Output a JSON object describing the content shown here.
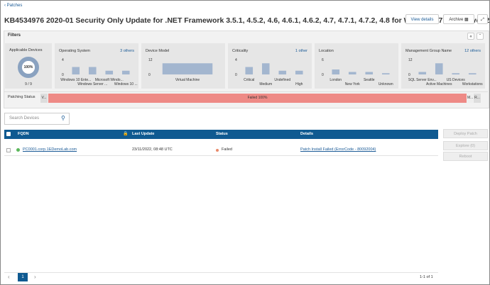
{
  "nav": {
    "back": "Patches"
  },
  "header": {
    "title": "KB4534976 2020-01 Security Only Update for .NET Framework 3.5.1, 4.5.2, 4.6, 4.6.1, 4.6.2, 4.7, 4.7.1, 4.7.2, 4.8 for Windows 7 and Server 2008 R2 for x6...",
    "buttons": [
      "View details",
      "Archive"
    ]
  },
  "filters": {
    "title": "Filters",
    "applicable_devices": {
      "title": "Applicable Devices",
      "percent": "100%",
      "count": "9 / 9"
    },
    "charts": [
      {
        "title": "Operating System",
        "link": "3 others",
        "ylim": [
          0,
          4
        ],
        "yticks": [
          0,
          4
        ],
        "categories": [
          "Windows 10 Ente...",
          "Windows Server ...",
          "Microsoft Windo...",
          "Windows 10 ..."
        ],
        "values": [
          2,
          2,
          1,
          1
        ]
      },
      {
        "title": "Device Model",
        "ylim": [
          0,
          12
        ],
        "yticks": [
          0,
          12
        ],
        "categories": [
          "Virtual Machine"
        ],
        "values": [
          9
        ]
      },
      {
        "title": "Criticality",
        "link": "1 other",
        "ylim": [
          0,
          4
        ],
        "yticks": [
          0,
          4
        ],
        "categories": [
          "Critical",
          "Medium",
          "Undefined",
          "High"
        ],
        "values": [
          2,
          3,
          1,
          1
        ]
      },
      {
        "title": "Location",
        "ylim": [
          0,
          6
        ],
        "yticks": [
          0,
          6
        ],
        "categories": [
          "London",
          "New York",
          "Seattle",
          "Unknown"
        ],
        "values": [
          2,
          1,
          1,
          0.5
        ]
      },
      {
        "title": "Management Group Name",
        "link": "12 others",
        "ylim": [
          0,
          12
        ],
        "yticks": [
          0,
          12
        ],
        "categories": [
          "SQL Server Env...",
          "Active Machines",
          "US Devices",
          "Workstations"
        ],
        "values": [
          2,
          9,
          1,
          1
        ]
      }
    ],
    "patching_status": {
      "label": "Patching Status",
      "segments": [
        "V...",
        "Failed 100%",
        "M...",
        "R..."
      ]
    }
  },
  "search": {
    "placeholder": "Search Devices"
  },
  "table": {
    "columns": [
      "FQDN",
      "Last Update",
      "Status",
      "Details"
    ],
    "rows": [
      [
        "PC0001.corp.1EDemoLab.com",
        "23/11/2022, 08:48 UTC",
        "Failed",
        "Patch Install Failed (ErrorCode - 80092004)"
      ]
    ]
  },
  "actions": [
    "Deploy Patch",
    "Explore (0)",
    "Reboot"
  ],
  "pagination": {
    "page": "1",
    "summary": "1-1 of 1"
  }
}
